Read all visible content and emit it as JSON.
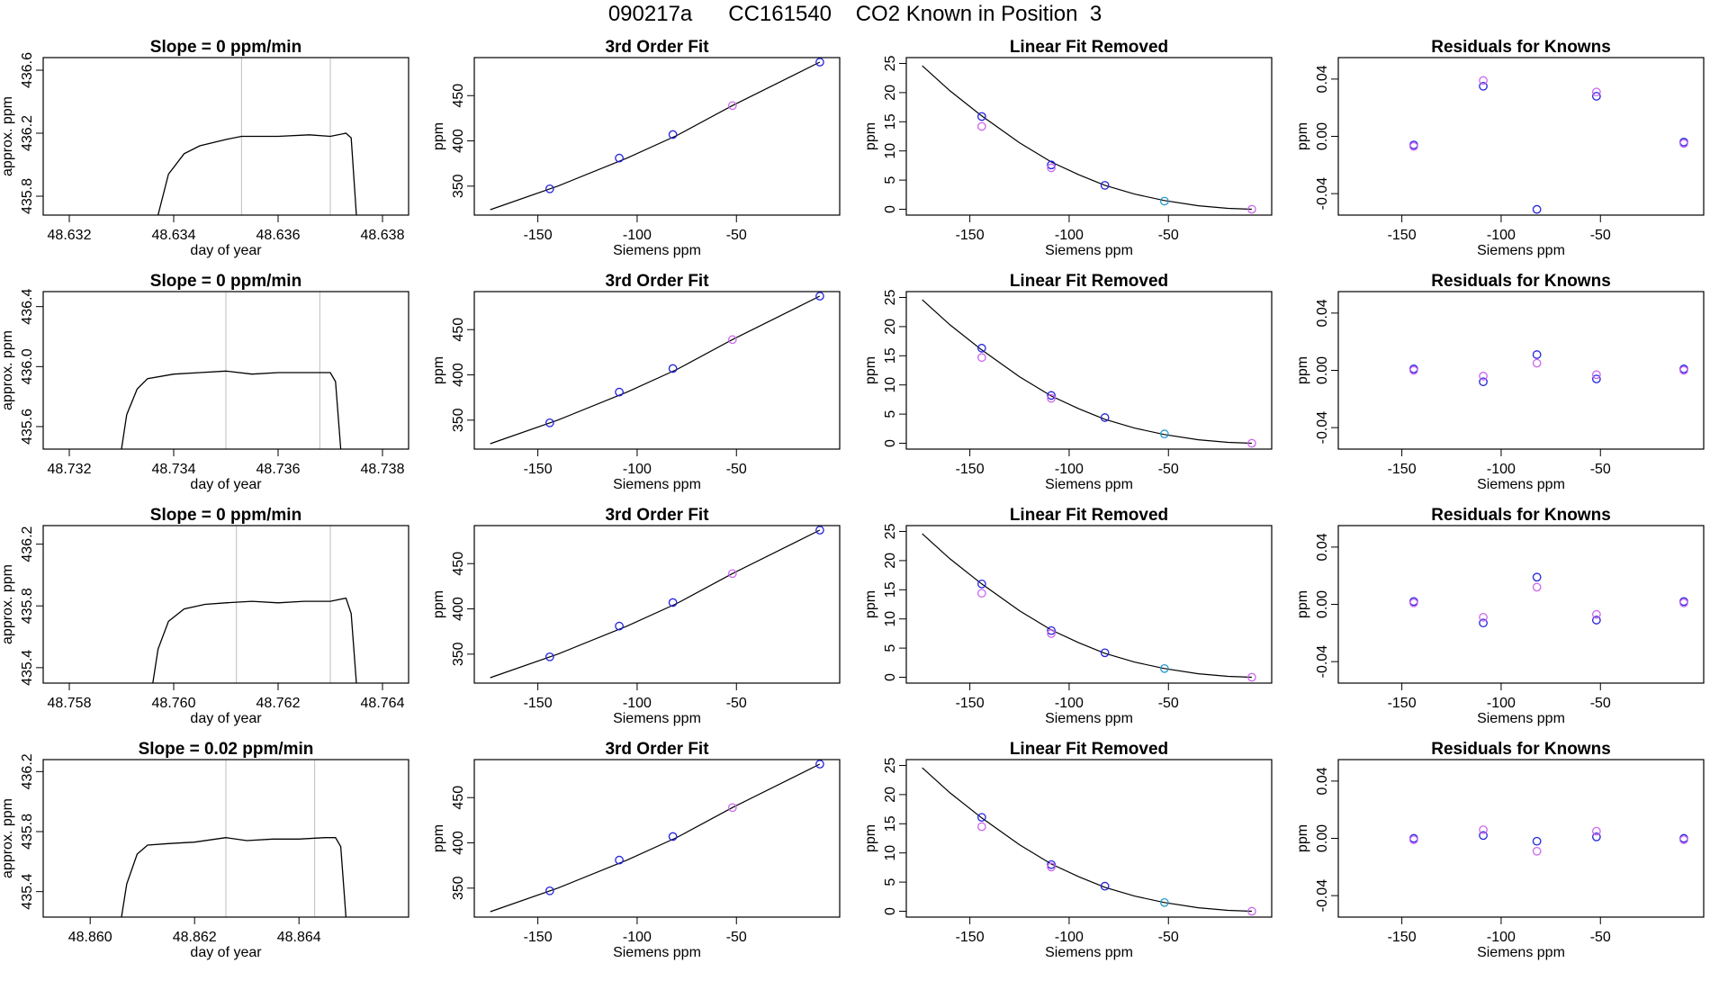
{
  "figure": {
    "title": "090217a      CC161540    CO2 Known in Position  3"
  },
  "colors": {
    "line": "#000000",
    "frame": "#000000",
    "vline": "#c8c8c8",
    "blue": "#2222dd",
    "violet": "#cc66ee",
    "cyan": "#2299cc"
  },
  "chart_data": [
    {
      "type": "line",
      "title": "Slope =  0  ppm/min",
      "xlabel": "day of year",
      "ylabel": "approx. ppm",
      "xlim": [
        48.6315,
        48.6385
      ],
      "ylim": [
        435.68,
        436.68
      ],
      "xticks": [
        "48.632",
        "48.634",
        "48.636",
        "48.638"
      ],
      "yticks": [
        "435.8",
        "436.2",
        "436.6"
      ],
      "vlines": [
        48.6353,
        48.637
      ],
      "series": [
        {
          "x": [
            48.6337,
            48.6339,
            48.6342,
            48.6345,
            48.635,
            48.6353,
            48.636,
            48.6366,
            48.637,
            48.6373,
            48.6374,
            48.6375
          ],
          "y": [
            435.68,
            435.94,
            436.07,
            436.12,
            436.16,
            436.18,
            436.18,
            436.19,
            436.18,
            436.2,
            436.17,
            435.68
          ]
        }
      ]
    },
    {
      "type": "scatter",
      "title": "3rd Order Fit",
      "xlabel": "Siemens ppm",
      "ylabel": "ppm",
      "xlim": [
        -182,
        2
      ],
      "ylim": [
        318,
        492
      ],
      "xticks": [
        "-150",
        "-100",
        "-50"
      ],
      "yticks": [
        "350",
        "400",
        "450"
      ],
      "curve": {
        "x": [
          -174,
          -140,
          -105,
          -80,
          -52,
          -8
        ],
        "y": [
          324,
          350,
          381,
          406,
          439,
          487
        ]
      },
      "points": [
        {
          "x": -144,
          "y": 347,
          "c": "blue"
        },
        {
          "x": -109,
          "y": 381,
          "c": "blue"
        },
        {
          "x": -82,
          "y": 407,
          "c": "blue"
        },
        {
          "x": -52,
          "y": 439,
          "c": "violet"
        },
        {
          "x": -8,
          "y": 487,
          "c": "blue"
        }
      ]
    },
    {
      "type": "scatter",
      "title": "Linear Fit Removed",
      "xlabel": "Siemens ppm",
      "ylabel": "ppm",
      "xlim": [
        -182,
        2
      ],
      "ylim": [
        -1,
        26
      ],
      "xticks": [
        "-150",
        "-100",
        "-50"
      ],
      "yticks": [
        "0",
        "5",
        "10",
        "15",
        "20",
        "25"
      ],
      "curve": {
        "x": [
          -174,
          -160,
          -144,
          -125,
          -109,
          -95,
          -82,
          -67,
          -52,
          -35,
          -20,
          -8
        ],
        "y": [
          24.6,
          20.3,
          16,
          11.4,
          8.1,
          5.9,
          4.1,
          2.6,
          1.5,
          0.6,
          0.15,
          0
        ]
      },
      "points": [
        {
          "x": -144,
          "y": 15.9,
          "c": "blue"
        },
        {
          "x": -144,
          "y": 14.2,
          "c": "violet"
        },
        {
          "x": -109,
          "y": 7.6,
          "c": "blue"
        },
        {
          "x": -109,
          "y": 7.1,
          "c": "violet"
        },
        {
          "x": -82,
          "y": 4.1,
          "c": "blue"
        },
        {
          "x": -52,
          "y": 1.4,
          "c": "cyan"
        },
        {
          "x": -8,
          "y": 0,
          "c": "violet"
        }
      ]
    },
    {
      "type": "scatter",
      "title": "Residuals for Knowns",
      "xlabel": "Siemens ppm",
      "ylabel": "ppm",
      "xlim": [
        -182,
        2
      ],
      "ylim": [
        -0.055,
        0.055
      ],
      "xticks": [
        "-150",
        "-100",
        "-50"
      ],
      "yticks": [
        "-0.04",
        "0.00",
        "0.04"
      ],
      "points": [
        {
          "x": -144,
          "y": -0.006,
          "c": "blue"
        },
        {
          "x": -144,
          "y": -0.007,
          "c": "violet"
        },
        {
          "x": -109,
          "y": 0.035,
          "c": "blue"
        },
        {
          "x": -109,
          "y": 0.039,
          "c": "violet"
        },
        {
          "x": -82,
          "y": -0.051,
          "c": "blue"
        },
        {
          "x": -52,
          "y": 0.028,
          "c": "blue"
        },
        {
          "x": -52,
          "y": 0.031,
          "c": "violet"
        },
        {
          "x": -8,
          "y": -0.004,
          "c": "blue"
        },
        {
          "x": -8,
          "y": -0.005,
          "c": "violet"
        }
      ]
    },
    {
      "type": "line",
      "title": "Slope =  0  ppm/min",
      "xlabel": "day of year",
      "ylabel": "approx. ppm",
      "xlim": [
        48.7315,
        48.7385
      ],
      "ylim": [
        435.45,
        436.5
      ],
      "xticks": [
        "48.732",
        "48.734",
        "48.736",
        "48.738"
      ],
      "yticks": [
        "435.6",
        "436.0",
        "436.4"
      ],
      "vlines": [
        48.735,
        48.7368
      ],
      "series": [
        {
          "x": [
            48.733,
            48.7331,
            48.7333,
            48.7335,
            48.734,
            48.7345,
            48.735,
            48.7355,
            48.736,
            48.7365,
            48.737,
            48.7371,
            48.7372
          ],
          "y": [
            435.45,
            435.68,
            435.85,
            435.92,
            435.95,
            435.96,
            435.97,
            435.95,
            435.96,
            435.96,
            435.96,
            435.9,
            435.45
          ]
        }
      ]
    },
    {
      "type": "scatter",
      "title": "3rd Order Fit",
      "xlabel": "Siemens ppm",
      "ylabel": "ppm",
      "xlim": [
        -182,
        2
      ],
      "ylim": [
        318,
        492
      ],
      "xticks": [
        "-150",
        "-100",
        "-50"
      ],
      "yticks": [
        "350",
        "400",
        "450"
      ],
      "curve": {
        "x": [
          -174,
          -140,
          -105,
          -80,
          -52,
          -8
        ],
        "y": [
          324,
          350,
          381,
          406,
          439,
          487
        ]
      },
      "points": [
        {
          "x": -144,
          "y": 347,
          "c": "blue"
        },
        {
          "x": -109,
          "y": 381,
          "c": "blue"
        },
        {
          "x": -82,
          "y": 407,
          "c": "blue"
        },
        {
          "x": -52,
          "y": 439,
          "c": "violet"
        },
        {
          "x": -8,
          "y": 487,
          "c": "blue"
        }
      ]
    },
    {
      "type": "scatter",
      "title": "Linear Fit Removed",
      "xlabel": "Siemens ppm",
      "ylabel": "ppm",
      "xlim": [
        -182,
        2
      ],
      "ylim": [
        -1,
        26
      ],
      "xticks": [
        "-150",
        "-100",
        "-50"
      ],
      "yticks": [
        "0",
        "5",
        "10",
        "15",
        "20",
        "25"
      ],
      "curve": {
        "x": [
          -174,
          -160,
          -144,
          -125,
          -109,
          -95,
          -82,
          -67,
          -52,
          -35,
          -20,
          -8
        ],
        "y": [
          24.6,
          20.3,
          16,
          11.4,
          8.1,
          5.9,
          4.1,
          2.6,
          1.5,
          0.6,
          0.15,
          0
        ]
      },
      "points": [
        {
          "x": -144,
          "y": 16.3,
          "c": "blue"
        },
        {
          "x": -144,
          "y": 14.7,
          "c": "violet"
        },
        {
          "x": -109,
          "y": 8.2,
          "c": "blue"
        },
        {
          "x": -109,
          "y": 7.7,
          "c": "violet"
        },
        {
          "x": -82,
          "y": 4.4,
          "c": "blue"
        },
        {
          "x": -52,
          "y": 1.6,
          "c": "cyan"
        },
        {
          "x": -8,
          "y": 0,
          "c": "violet"
        }
      ]
    },
    {
      "type": "scatter",
      "title": "Residuals for Knowns",
      "xlabel": "Siemens ppm",
      "ylabel": "ppm",
      "xlim": [
        -182,
        2
      ],
      "ylim": [
        -0.055,
        0.055
      ],
      "xticks": [
        "-150",
        "-100",
        "-50"
      ],
      "yticks": [
        "-0.04",
        "0.00",
        "0.04"
      ],
      "points": [
        {
          "x": -144,
          "y": 0.001,
          "c": "blue"
        },
        {
          "x": -144,
          "y": 0.0,
          "c": "violet"
        },
        {
          "x": -109,
          "y": -0.008,
          "c": "blue"
        },
        {
          "x": -109,
          "y": -0.004,
          "c": "violet"
        },
        {
          "x": -82,
          "y": 0.011,
          "c": "blue"
        },
        {
          "x": -82,
          "y": 0.005,
          "c": "violet"
        },
        {
          "x": -52,
          "y": -0.006,
          "c": "blue"
        },
        {
          "x": -52,
          "y": -0.003,
          "c": "violet"
        },
        {
          "x": -8,
          "y": 0.001,
          "c": "blue"
        },
        {
          "x": -8,
          "y": 0.0,
          "c": "violet"
        }
      ]
    },
    {
      "type": "line",
      "title": "Slope =  0  ppm/min",
      "xlabel": "day of year",
      "ylabel": "approx. ppm",
      "xlim": [
        48.7575,
        48.7645
      ],
      "ylim": [
        435.3,
        436.32
      ],
      "xticks": [
        "48.758",
        "48.760",
        "48.762",
        "48.764"
      ],
      "yticks": [
        "435.4",
        "435.8",
        "436.2"
      ],
      "vlines": [
        48.7612,
        48.763
      ],
      "series": [
        {
          "x": [
            48.7596,
            48.7597,
            48.7599,
            48.7602,
            48.7606,
            48.761,
            48.7615,
            48.762,
            48.7625,
            48.763,
            48.7633,
            48.7634,
            48.7635
          ],
          "y": [
            435.3,
            435.52,
            435.7,
            435.78,
            435.81,
            435.82,
            435.83,
            435.82,
            435.83,
            435.83,
            435.85,
            435.75,
            435.3
          ]
        }
      ]
    },
    {
      "type": "scatter",
      "title": "3rd Order Fit",
      "xlabel": "Siemens ppm",
      "ylabel": "ppm",
      "xlim": [
        -182,
        2
      ],
      "ylim": [
        318,
        492
      ],
      "xticks": [
        "-150",
        "-100",
        "-50"
      ],
      "yticks": [
        "350",
        "400",
        "450"
      ],
      "curve": {
        "x": [
          -174,
          -140,
          -105,
          -80,
          -52,
          -8
        ],
        "y": [
          324,
          350,
          381,
          406,
          439,
          487
        ]
      },
      "points": [
        {
          "x": -144,
          "y": 347,
          "c": "blue"
        },
        {
          "x": -109,
          "y": 381,
          "c": "blue"
        },
        {
          "x": -82,
          "y": 407,
          "c": "blue"
        },
        {
          "x": -52,
          "y": 439,
          "c": "violet"
        },
        {
          "x": -8,
          "y": 487,
          "c": "blue"
        }
      ]
    },
    {
      "type": "scatter",
      "title": "Linear Fit Removed",
      "xlabel": "Siemens ppm",
      "ylabel": "ppm",
      "xlim": [
        -182,
        2
      ],
      "ylim": [
        -1,
        26
      ],
      "xticks": [
        "-150",
        "-100",
        "-50"
      ],
      "yticks": [
        "0",
        "5",
        "10",
        "15",
        "20",
        "25"
      ],
      "curve": {
        "x": [
          -174,
          -160,
          -144,
          -125,
          -109,
          -95,
          -82,
          -67,
          -52,
          -35,
          -20,
          -8
        ],
        "y": [
          24.6,
          20.3,
          16,
          11.4,
          8.1,
          5.9,
          4.1,
          2.6,
          1.5,
          0.6,
          0.15,
          0
        ]
      },
      "points": [
        {
          "x": -144,
          "y": 16.0,
          "c": "blue"
        },
        {
          "x": -144,
          "y": 14.4,
          "c": "violet"
        },
        {
          "x": -109,
          "y": 8.0,
          "c": "blue"
        },
        {
          "x": -109,
          "y": 7.5,
          "c": "violet"
        },
        {
          "x": -82,
          "y": 4.2,
          "c": "blue"
        },
        {
          "x": -52,
          "y": 1.5,
          "c": "cyan"
        },
        {
          "x": -8,
          "y": 0,
          "c": "violet"
        }
      ]
    },
    {
      "type": "scatter",
      "title": "Residuals for Knowns",
      "xlabel": "Siemens ppm",
      "ylabel": "ppm",
      "xlim": [
        -182,
        2
      ],
      "ylim": [
        -0.055,
        0.055
      ],
      "xticks": [
        "-150",
        "-100",
        "-50"
      ],
      "yticks": [
        "-0.04",
        "0.00",
        "0.04"
      ],
      "points": [
        {
          "x": -144,
          "y": 0.002,
          "c": "blue"
        },
        {
          "x": -144,
          "y": 0.001,
          "c": "violet"
        },
        {
          "x": -109,
          "y": -0.013,
          "c": "blue"
        },
        {
          "x": -109,
          "y": -0.009,
          "c": "violet"
        },
        {
          "x": -82,
          "y": 0.019,
          "c": "blue"
        },
        {
          "x": -82,
          "y": 0.012,
          "c": "violet"
        },
        {
          "x": -52,
          "y": -0.011,
          "c": "blue"
        },
        {
          "x": -52,
          "y": -0.007,
          "c": "violet"
        },
        {
          "x": -8,
          "y": 0.002,
          "c": "blue"
        },
        {
          "x": -8,
          "y": 0.001,
          "c": "violet"
        }
      ]
    },
    {
      "type": "line",
      "title": "Slope =  0.02  ppm/min",
      "xlabel": "day of year",
      "ylabel": "approx. ppm",
      "xlim": [
        48.8591,
        48.8661
      ],
      "ylim": [
        435.23,
        436.28
      ],
      "xticks": [
        "48.860",
        "48.862",
        "48.864"
      ],
      "yticks": [
        "435.4",
        "435.8",
        "436.2"
      ],
      "vlines": [
        48.8626,
        48.8643
      ],
      "series": [
        {
          "x": [
            48.8606,
            48.8607,
            48.8609,
            48.8611,
            48.8615,
            48.862,
            48.8626,
            48.863,
            48.8635,
            48.864,
            48.8645,
            48.8647,
            48.8648,
            48.8649
          ],
          "y": [
            435.23,
            435.45,
            435.65,
            435.71,
            435.72,
            435.73,
            435.76,
            435.74,
            435.75,
            435.75,
            435.76,
            435.76,
            435.7,
            435.23
          ]
        }
      ]
    },
    {
      "type": "scatter",
      "title": "3rd Order Fit",
      "xlabel": "Siemens ppm",
      "ylabel": "ppm",
      "xlim": [
        -182,
        2
      ],
      "ylim": [
        318,
        492
      ],
      "xticks": [
        "-150",
        "-100",
        "-50"
      ],
      "yticks": [
        "350",
        "400",
        "450"
      ],
      "curve": {
        "x": [
          -174,
          -140,
          -105,
          -80,
          -52,
          -8
        ],
        "y": [
          324,
          350,
          381,
          406,
          439,
          487
        ]
      },
      "points": [
        {
          "x": -144,
          "y": 347,
          "c": "blue"
        },
        {
          "x": -109,
          "y": 381,
          "c": "blue"
        },
        {
          "x": -82,
          "y": 407,
          "c": "blue"
        },
        {
          "x": -52,
          "y": 439,
          "c": "violet"
        },
        {
          "x": -8,
          "y": 487,
          "c": "blue"
        }
      ]
    },
    {
      "type": "scatter",
      "title": "Linear Fit Removed",
      "xlabel": "Siemens ppm",
      "ylabel": "ppm",
      "xlim": [
        -182,
        2
      ],
      "ylim": [
        -1,
        26
      ],
      "xticks": [
        "-150",
        "-100",
        "-50"
      ],
      "yticks": [
        "0",
        "5",
        "10",
        "15",
        "20",
        "25"
      ],
      "curve": {
        "x": [
          -174,
          -160,
          -144,
          -125,
          -109,
          -95,
          -82,
          -67,
          -52,
          -35,
          -20,
          -8
        ],
        "y": [
          24.6,
          20.3,
          16,
          11.4,
          8.1,
          5.9,
          4.1,
          2.6,
          1.5,
          0.6,
          0.15,
          0
        ]
      },
      "points": [
        {
          "x": -144,
          "y": 16.1,
          "c": "blue"
        },
        {
          "x": -144,
          "y": 14.5,
          "c": "violet"
        },
        {
          "x": -109,
          "y": 8.0,
          "c": "blue"
        },
        {
          "x": -109,
          "y": 7.6,
          "c": "violet"
        },
        {
          "x": -82,
          "y": 4.3,
          "c": "blue"
        },
        {
          "x": -52,
          "y": 1.5,
          "c": "cyan"
        },
        {
          "x": -8,
          "y": 0,
          "c": "violet"
        }
      ]
    },
    {
      "type": "scatter",
      "title": "Residuals for Knowns",
      "xlabel": "Siemens ppm",
      "ylabel": "ppm",
      "xlim": [
        -182,
        2
      ],
      "ylim": [
        -0.055,
        0.055
      ],
      "xticks": [
        "-150",
        "-100",
        "-50"
      ],
      "yticks": [
        "-0.04",
        "0.00",
        "0.04"
      ],
      "points": [
        {
          "x": -144,
          "y": 0.0,
          "c": "blue"
        },
        {
          "x": -144,
          "y": -0.001,
          "c": "violet"
        },
        {
          "x": -109,
          "y": 0.002,
          "c": "blue"
        },
        {
          "x": -109,
          "y": 0.006,
          "c": "violet"
        },
        {
          "x": -82,
          "y": -0.002,
          "c": "blue"
        },
        {
          "x": -82,
          "y": -0.009,
          "c": "violet"
        },
        {
          "x": -52,
          "y": 0.001,
          "c": "blue"
        },
        {
          "x": -52,
          "y": 0.005,
          "c": "violet"
        },
        {
          "x": -8,
          "y": 0.0,
          "c": "blue"
        },
        {
          "x": -8,
          "y": -0.001,
          "c": "violet"
        }
      ]
    }
  ]
}
